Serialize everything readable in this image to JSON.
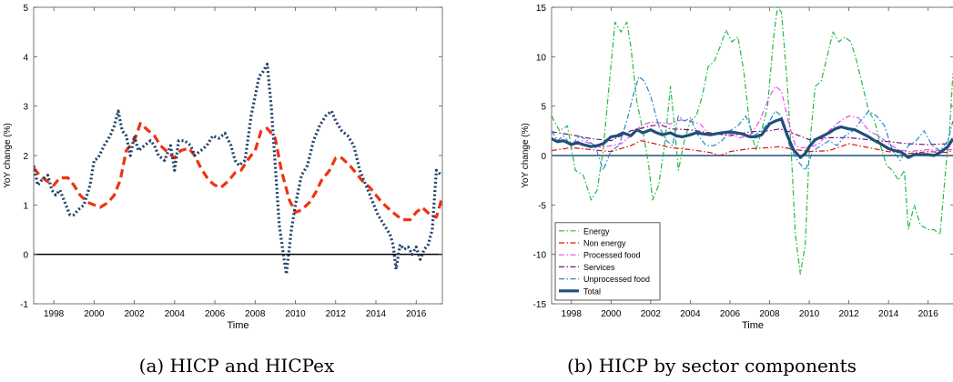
{
  "captions": [
    "(a) HICP and HICPex",
    "(b) HICP by sector components"
  ],
  "colors": {
    "hicpex": "#ee3311",
    "hicp": "#1f3f6a",
    "zero_line_a": "#000000",
    "zero_line_b": "#1f4f7a",
    "energy": "#22bb44",
    "non_energy": "#dd1111",
    "processed_food": "#ee44ee",
    "services": "#771177",
    "unprocessed_food": "#2288cc",
    "total": "#1f4f7a"
  },
  "chart_data": [
    {
      "type": "line",
      "title": "",
      "xlabel": "Time",
      "ylabel": "YoY change (%)",
      "xlim": [
        1997.0,
        2017.3
      ],
      "ylim": [
        -1,
        5
      ],
      "x_ticks": [
        1998,
        2000,
        2002,
        2004,
        2006,
        2008,
        2010,
        2012,
        2014,
        2016
      ],
      "y_ticks": [
        -1,
        0,
        1,
        2,
        3,
        4,
        5
      ],
      "grid": false,
      "legend": "none",
      "reference_line": 0,
      "series": [
        {
          "key": "hicpex",
          "style": "dashed-thick",
          "x": [
            1997.0,
            1997.3,
            1997.6,
            1998.0,
            1998.3,
            1998.7,
            1999.0,
            1999.3,
            1999.7,
            2000.0,
            2000.3,
            2000.7,
            2001.0,
            2001.3,
            2001.6,
            2002.0,
            2002.3,
            2002.7,
            2003.0,
            2003.3,
            2003.7,
            2004.0,
            2004.3,
            2004.7,
            2005.0,
            2005.3,
            2005.7,
            2006.0,
            2006.3,
            2006.7,
            2007.0,
            2007.3,
            2007.7,
            2008.0,
            2008.3,
            2008.6,
            2009.0,
            2009.3,
            2009.7,
            2010.0,
            2010.3,
            2010.7,
            2011.0,
            2011.3,
            2011.7,
            2012.0,
            2012.3,
            2012.7,
            2013.0,
            2013.3,
            2013.7,
            2014.0,
            2014.3,
            2014.7,
            2015.0,
            2015.3,
            2015.7,
            2016.0,
            2016.3,
            2016.7,
            2017.0,
            2017.25
          ],
          "values": [
            1.75,
            1.6,
            1.5,
            1.4,
            1.55,
            1.55,
            1.4,
            1.2,
            1.05,
            1.0,
            0.95,
            1.05,
            1.2,
            1.5,
            2.1,
            2.3,
            2.65,
            2.5,
            2.4,
            2.2,
            2.05,
            1.95,
            2.1,
            2.15,
            2.0,
            1.75,
            1.5,
            1.4,
            1.35,
            1.5,
            1.65,
            1.7,
            1.95,
            2.1,
            2.5,
            2.55,
            2.35,
            1.7,
            1.1,
            0.85,
            0.9,
            1.05,
            1.25,
            1.5,
            1.7,
            1.95,
            1.95,
            1.8,
            1.65,
            1.5,
            1.35,
            1.2,
            1.05,
            0.9,
            0.8,
            0.7,
            0.7,
            0.85,
            0.95,
            0.8,
            0.75,
            1.1
          ]
        },
        {
          "key": "hicp",
          "style": "dotted-thick",
          "x": [
            1997.0,
            1997.2,
            1997.4,
            1997.7,
            1997.9,
            1998.1,
            1998.3,
            1998.5,
            1998.8,
            1999.0,
            1999.2,
            1999.5,
            1999.8,
            2000.0,
            2000.2,
            2000.5,
            2000.8,
            2001.0,
            2001.2,
            2001.4,
            2001.6,
            2001.8,
            2002.0,
            2002.2,
            2002.5,
            2002.8,
            2003.0,
            2003.2,
            2003.5,
            2003.8,
            2004.0,
            2004.2,
            2004.5,
            2004.8,
            2005.0,
            2005.3,
            2005.6,
            2005.9,
            2006.2,
            2006.5,
            2006.8,
            2007.0,
            2007.2,
            2007.5,
            2007.8,
            2008.0,
            2008.2,
            2008.4,
            2008.6,
            2008.8,
            2009.0,
            2009.2,
            2009.4,
            2009.55,
            2009.8,
            2010.0,
            2010.3,
            2010.6,
            2010.9,
            2011.2,
            2011.5,
            2011.8,
            2012.0,
            2012.3,
            2012.6,
            2012.9,
            2013.2,
            2013.5,
            2013.8,
            2014.1,
            2014.4,
            2014.7,
            2014.85,
            2015.0,
            2015.2,
            2015.4,
            2015.6,
            2015.8,
            2016.0,
            2016.2,
            2016.4,
            2016.6,
            2016.8,
            2017.0,
            2017.25
          ],
          "values": [
            1.8,
            1.4,
            1.5,
            1.6,
            1.3,
            1.2,
            1.3,
            1.1,
            0.8,
            0.8,
            0.9,
            1.0,
            1.4,
            1.9,
            1.95,
            2.2,
            2.4,
            2.6,
            2.9,
            2.5,
            2.4,
            2.0,
            2.4,
            2.1,
            2.2,
            2.3,
            2.2,
            2.0,
            1.9,
            2.2,
            1.7,
            2.3,
            2.3,
            2.2,
            2.0,
            2.1,
            2.2,
            2.4,
            2.35,
            2.45,
            2.2,
            1.9,
            1.8,
            1.9,
            2.8,
            3.2,
            3.6,
            3.7,
            3.85,
            3.0,
            1.8,
            0.6,
            0.0,
            -0.4,
            0.5,
            1.0,
            1.6,
            1.8,
            2.3,
            2.6,
            2.8,
            2.9,
            2.7,
            2.5,
            2.4,
            2.2,
            1.7,
            1.4,
            1.1,
            0.8,
            0.6,
            0.4,
            0.2,
            -0.3,
            0.2,
            0.1,
            0.15,
            0.0,
            0.15,
            -0.1,
            0.1,
            0.2,
            0.5,
            1.7,
            1.6
          ]
        }
      ]
    },
    {
      "type": "line",
      "title": "",
      "xlabel": "Time",
      "ylabel": "YoY change (%)",
      "xlim": [
        1997.0,
        2017.3
      ],
      "ylim": [
        -15,
        15
      ],
      "x_ticks": [
        1998,
        2000,
        2002,
        2004,
        2006,
        2008,
        2010,
        2012,
        2014,
        2016
      ],
      "y_ticks": [
        -15,
        -10,
        -5,
        0,
        5,
        10,
        15
      ],
      "grid": false,
      "legend": "bottom-left",
      "reference_line": 0,
      "series": [
        {
          "key": "energy",
          "name": "Energy",
          "style": "dashdot",
          "x": [
            1997.0,
            1997.4,
            1997.8,
            1998.2,
            1998.6,
            1999.0,
            1999.3,
            1999.6,
            1999.9,
            2000.2,
            2000.5,
            2000.8,
            2001.0,
            2001.3,
            2001.6,
            2001.9,
            2002.1,
            2002.4,
            2002.7,
            2003.0,
            2003.2,
            2003.4,
            2003.7,
            2004.0,
            2004.3,
            2004.6,
            2004.9,
            2005.2,
            2005.5,
            2005.8,
            2006.1,
            2006.4,
            2006.7,
            2007.0,
            2007.3,
            2007.6,
            2007.9,
            2008.2,
            2008.4,
            2008.6,
            2008.9,
            2009.1,
            2009.3,
            2009.55,
            2009.8,
            2010.0,
            2010.3,
            2010.6,
            2010.9,
            2011.2,
            2011.5,
            2011.8,
            2012.1,
            2012.4,
            2012.7,
            2013.0,
            2013.3,
            2013.6,
            2013.9,
            2014.2,
            2014.5,
            2014.8,
            2015.0,
            2015.3,
            2015.6,
            2016.0,
            2016.3,
            2016.6,
            2016.9,
            2017.1,
            2017.25
          ],
          "values": [
            4.0,
            2.5,
            3.0,
            -1.5,
            -2.0,
            -4.5,
            -3.5,
            0.5,
            7.0,
            13.5,
            12.5,
            13.5,
            11.0,
            5.5,
            2.5,
            -1.0,
            -4.5,
            -3.0,
            1.0,
            7.0,
            3.0,
            -1.5,
            1.5,
            3.5,
            4.0,
            6.0,
            9.0,
            9.5,
            11.0,
            12.7,
            11.5,
            12.0,
            8.5,
            3.0,
            0.5,
            2.5,
            5.0,
            12.0,
            15.0,
            14.5,
            7.0,
            0.0,
            -8.0,
            -12.0,
            -9.0,
            0.5,
            7.0,
            7.5,
            10.0,
            12.5,
            11.5,
            12.0,
            11.5,
            9.5,
            7.0,
            4.5,
            3.5,
            1.0,
            -1.0,
            -1.5,
            -2.5,
            -1.5,
            -7.5,
            -5.0,
            -7.0,
            -7.5,
            -7.5,
            -8.0,
            -1.0,
            3.0,
            8.3
          ]
        },
        {
          "key": "non_energy",
          "name": "Non energy",
          "style": "dashdot",
          "x": [
            1997.0,
            1998.0,
            1999.0,
            2000.0,
            2001.0,
            2001.5,
            2002.0,
            2003.0,
            2004.0,
            2005.0,
            2005.5,
            2006.0,
            2007.0,
            2008.0,
            2008.5,
            2009.0,
            2010.0,
            2011.0,
            2012.0,
            2013.0,
            2014.0,
            2015.0,
            2016.0,
            2017.0,
            2017.25
          ],
          "values": [
            0.5,
            0.8,
            0.6,
            0.4,
            1.0,
            1.5,
            1.3,
            0.8,
            0.6,
            0.3,
            0.0,
            0.4,
            0.7,
            0.8,
            0.9,
            0.7,
            0.4,
            0.5,
            1.2,
            0.8,
            0.4,
            0.2,
            0.4,
            0.3,
            0.6
          ]
        },
        {
          "key": "processed_food",
          "name": "Processed food",
          "style": "dashdot",
          "x": [
            1997.0,
            1997.5,
            1998.0,
            1998.5,
            1999.0,
            1999.5,
            2000.0,
            2000.5,
            2001.0,
            2001.5,
            2002.0,
            2002.5,
            2003.0,
            2003.5,
            2004.0,
            2004.5,
            2005.0,
            2005.5,
            2006.0,
            2006.5,
            2007.0,
            2007.5,
            2008.0,
            2008.3,
            2008.6,
            2009.0,
            2009.3,
            2009.6,
            2010.0,
            2010.5,
            2011.0,
            2011.5,
            2012.0,
            2012.5,
            2013.0,
            2013.5,
            2014.0,
            2014.5,
            2015.0,
            2015.5,
            2016.0,
            2016.5,
            2017.0,
            2017.25
          ],
          "values": [
            1.6,
            1.5,
            1.3,
            1.5,
            1.2,
            0.8,
            1.0,
            1.2,
            2.0,
            3.0,
            3.4,
            3.3,
            3.2,
            3.6,
            3.5,
            3.2,
            2.0,
            2.2,
            2.2,
            1.8,
            2.0,
            3.5,
            6.0,
            7.0,
            6.5,
            3.0,
            1.0,
            0.8,
            0.8,
            1.2,
            2.5,
            3.4,
            4.0,
            3.8,
            2.5,
            2.0,
            1.2,
            0.6,
            0.4,
            0.5,
            0.6,
            0.5,
            0.6,
            0.6
          ]
        },
        {
          "key": "services",
          "name": "Services",
          "style": "dashdot",
          "x": [
            1997.0,
            1998.0,
            1999.0,
            2000.0,
            2001.0,
            2002.0,
            2002.5,
            2003.0,
            2004.0,
            2005.0,
            2006.0,
            2007.0,
            2008.0,
            2008.5,
            2009.0,
            2010.0,
            2011.0,
            2012.0,
            2013.0,
            2014.0,
            2015.0,
            2016.0,
            2017.0,
            2017.25
          ],
          "values": [
            2.4,
            2.1,
            1.7,
            1.5,
            2.5,
            3.0,
            3.1,
            2.7,
            2.6,
            2.3,
            2.0,
            2.4,
            2.5,
            2.7,
            2.4,
            1.6,
            1.8,
            1.8,
            1.6,
            1.4,
            1.2,
            1.1,
            1.2,
            1.3
          ]
        },
        {
          "key": "unprocessed_food",
          "name": "Unprocessed food",
          "style": "dashdot",
          "x": [
            1997.0,
            1997.3,
            1997.6,
            1998.0,
            1998.4,
            1998.8,
            1999.2,
            1999.6,
            2000.0,
            2000.4,
            2000.8,
            2001.1,
            2001.4,
            2001.7,
            2002.0,
            2002.4,
            2002.8,
            2003.1,
            2003.4,
            2003.7,
            2004.0,
            2004.4,
            2004.8,
            2005.2,
            2005.6,
            2006.0,
            2006.4,
            2006.8,
            2007.2,
            2007.6,
            2008.0,
            2008.3,
            2008.6,
            2009.0,
            2009.4,
            2009.8,
            2010.2,
            2010.6,
            2011.0,
            2011.4,
            2011.8,
            2012.2,
            2012.6,
            2013.0,
            2013.4,
            2013.8,
            2014.2,
            2014.6,
            2015.0,
            2015.4,
            2015.8,
            2016.2,
            2016.6,
            2017.0,
            2017.25
          ],
          "values": [
            2.5,
            1.5,
            2.0,
            1.0,
            2.0,
            1.5,
            1.0,
            -1.5,
            0.5,
            1.0,
            3.5,
            6.0,
            8.0,
            7.5,
            6.0,
            3.0,
            1.5,
            1.0,
            4.0,
            3.5,
            3.8,
            2.0,
            1.0,
            1.0,
            1.5,
            2.5,
            3.0,
            4.0,
            2.0,
            2.5,
            3.5,
            4.5,
            4.0,
            1.0,
            -0.5,
            -1.5,
            0.5,
            1.0,
            1.5,
            1.0,
            2.0,
            2.5,
            3.5,
            4.5,
            4.0,
            3.0,
            0.5,
            -0.5,
            1.0,
            1.5,
            2.5,
            1.0,
            0.5,
            1.5,
            3.5
          ]
        },
        {
          "key": "total",
          "name": "Total",
          "style": "solid-thick",
          "x": [
            1997.0,
            1997.3,
            1997.6,
            1998.0,
            1998.3,
            1998.6,
            1999.0,
            1999.3,
            1999.6,
            2000.0,
            2000.3,
            2000.6,
            2001.0,
            2001.3,
            2001.6,
            2002.0,
            2002.3,
            2002.6,
            2003.0,
            2003.3,
            2003.6,
            2004.0,
            2004.3,
            2004.6,
            2005.0,
            2005.3,
            2005.6,
            2006.0,
            2006.3,
            2006.6,
            2007.0,
            2007.3,
            2007.6,
            2008.0,
            2008.3,
            2008.6,
            2008.9,
            2009.2,
            2009.55,
            2009.8,
            2010.0,
            2010.3,
            2010.6,
            2011.0,
            2011.3,
            2011.6,
            2012.0,
            2012.3,
            2012.6,
            2013.0,
            2013.3,
            2013.6,
            2014.0,
            2014.3,
            2014.6,
            2015.0,
            2015.3,
            2015.6,
            2016.0,
            2016.3,
            2016.6,
            2017.0,
            2017.25
          ],
          "values": [
            1.7,
            1.4,
            1.5,
            1.1,
            1.3,
            1.1,
            0.9,
            1.0,
            1.2,
            1.9,
            2.0,
            2.3,
            2.0,
            2.6,
            2.3,
            2.6,
            2.3,
            2.1,
            2.3,
            2.0,
            1.9,
            2.1,
            2.3,
            2.2,
            2.1,
            2.2,
            2.3,
            2.4,
            2.3,
            2.2,
            1.9,
            1.9,
            2.1,
            3.2,
            3.5,
            3.7,
            2.0,
            0.6,
            -0.2,
            0.2,
            0.9,
            1.6,
            1.9,
            2.3,
            2.7,
            2.9,
            2.7,
            2.6,
            2.3,
            1.9,
            1.5,
            1.2,
            0.7,
            0.5,
            0.4,
            -0.2,
            0.1,
            0.1,
            0.1,
            0.0,
            0.3,
            0.9,
            1.7
          ]
        }
      ]
    }
  ]
}
